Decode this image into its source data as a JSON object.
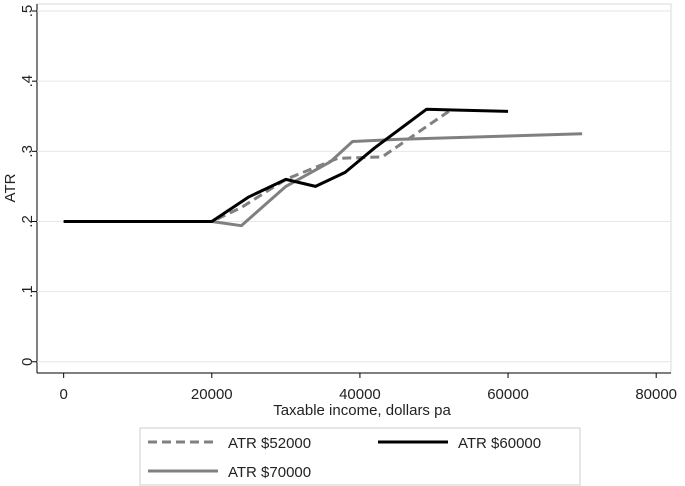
{
  "chart_data": {
    "type": "line",
    "x_label": "Taxable income, dollars pa",
    "y_label": "ATR",
    "xlim": [
      -3600,
      82000
    ],
    "xticks": [
      0,
      20000,
      40000,
      60000,
      80000
    ],
    "ylim": [
      -0.016,
      0.51
    ],
    "yticks": [
      0,
      {
        "value": 0.1,
        "label": ".1"
      },
      {
        "value": 0.2,
        "label": ".2"
      },
      {
        "value": 0.3,
        "label": ".3"
      },
      {
        "value": 0.4,
        "label": ".4"
      },
      {
        "value": 0.5,
        "label": ".5"
      }
    ],
    "grid": true,
    "legend": "bottom",
    "series": [
      {
        "name": "ATR $52000",
        "color": "#808080",
        "style": "dashed",
        "x": [
          0,
          20000,
          24000,
          30000,
          37000,
          43000,
          52000
        ],
        "values": [
          0.2,
          0.2,
          0.22,
          0.26,
          0.29,
          0.292,
          0.357
        ]
      },
      {
        "name": "ATR $60000",
        "color": "#000000",
        "style": "solid",
        "x": [
          0,
          20000,
          25000,
          30000,
          34000,
          38000,
          42000,
          49000,
          52000,
          60000
        ],
        "values": [
          0.2,
          0.2,
          0.235,
          0.26,
          0.25,
          0.27,
          0.305,
          0.36,
          0.359,
          0.357
        ]
      },
      {
        "name": "ATR $70000",
        "color": "#808080",
        "style": "solid",
        "x": [
          0,
          20000,
          24000,
          30000,
          36000,
          39000,
          45000,
          70000
        ],
        "values": [
          0.2,
          0.2,
          0.194,
          0.25,
          0.285,
          0.314,
          0.317,
          0.325
        ]
      }
    ]
  }
}
